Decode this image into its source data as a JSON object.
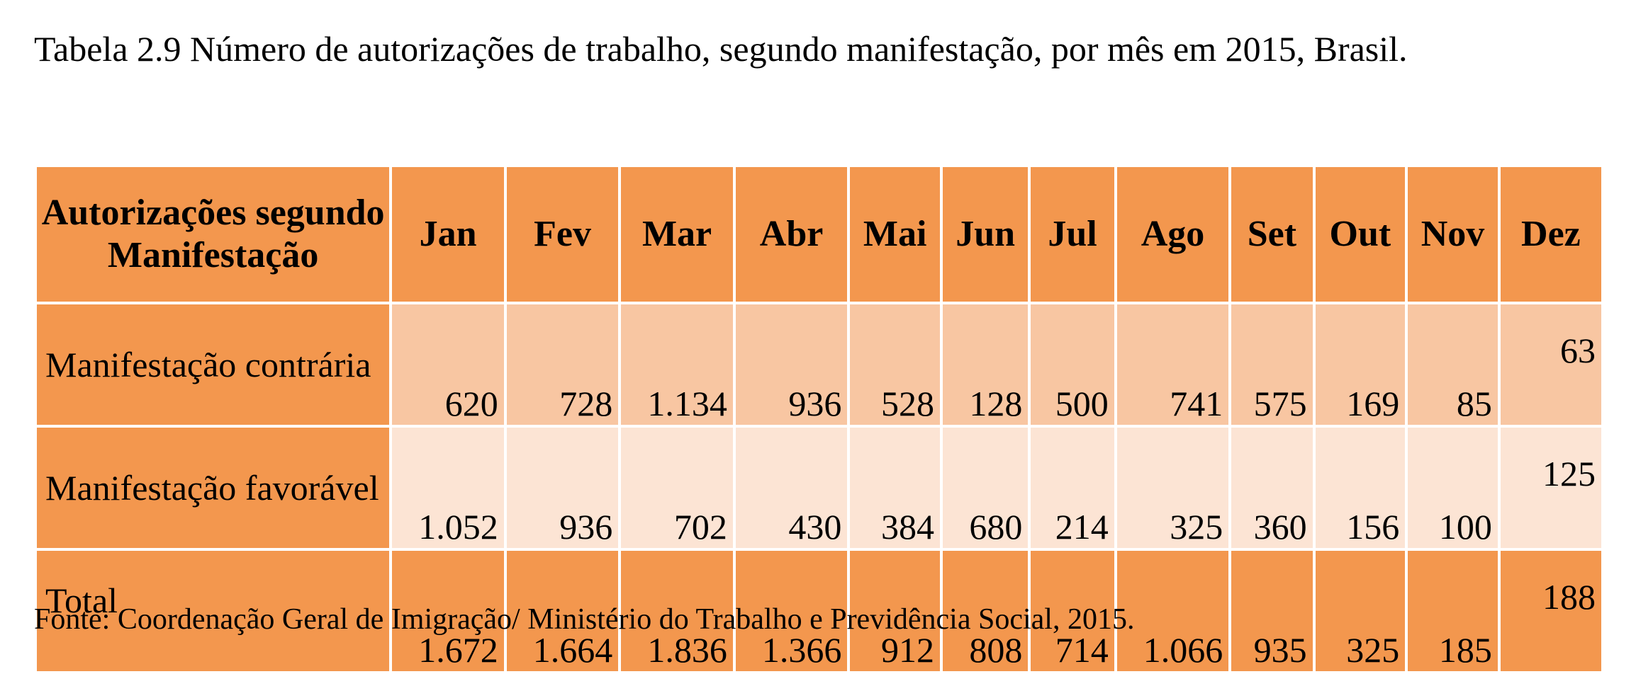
{
  "caption": "Tabela 2.9 Número de autorizações de trabalho, segundo manifestação, por mês em 2015, Brasil.",
  "table": {
    "row_header": "Autorizações segundo Manifestação",
    "months": [
      "Jan",
      "Fev",
      "Mar",
      "Abr",
      "Mai",
      "Jun",
      "Jul",
      "Ago",
      "Set",
      "Out",
      "Nov",
      "Dez"
    ],
    "rows": [
      {
        "label": "Manifestação contrária",
        "values": [
          "620",
          "728",
          "1.134",
          "936",
          "528",
          "128",
          "500",
          "741",
          "575",
          "169",
          "85",
          "63"
        ]
      },
      {
        "label": "Manifestação favorável",
        "values": [
          "1.052",
          "936",
          "702",
          "430",
          "384",
          "680",
          "214",
          "325",
          "360",
          "156",
          "100",
          "125"
        ]
      },
      {
        "label": "Total",
        "values": [
          "1.672",
          "1.664",
          "1.836",
          "1.366",
          "912",
          "808",
          "714",
          "1.066",
          "935",
          "325",
          "185",
          "188"
        ]
      }
    ]
  },
  "source": "Fonte: Coordenação Geral de Imigração/ Ministério do Trabalho e Previdência Social, 2015.",
  "colors": {
    "header_orange": "#f3974e",
    "light_orange": "#f8c6a2",
    "pale_orange": "#fce4d4"
  }
}
